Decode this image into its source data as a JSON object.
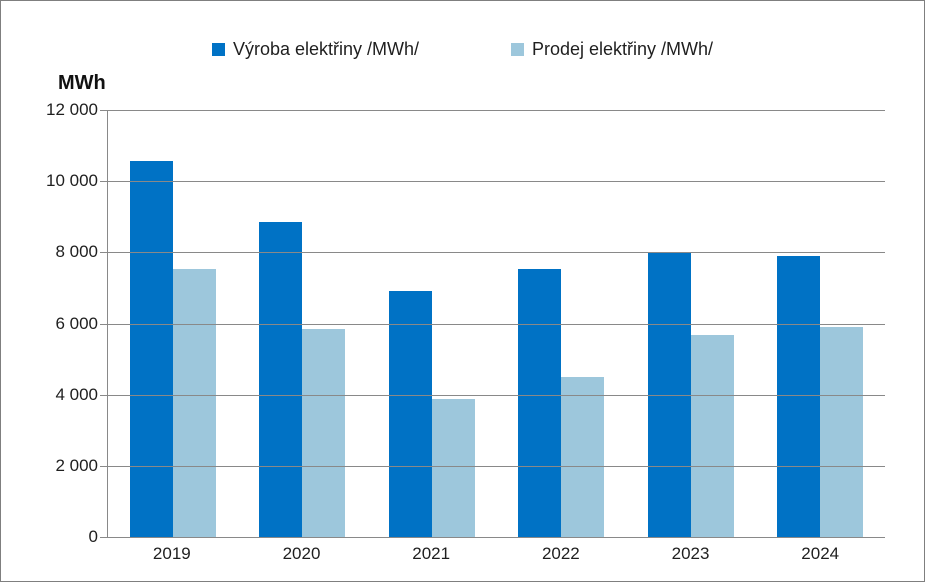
{
  "frame": {
    "background": "#ffffff",
    "border_color": "#7f7f7f"
  },
  "chart_data": {
    "type": "bar",
    "title": "",
    "ylabel": "MWh",
    "xlabel": "",
    "categories": [
      "2019",
      "2020",
      "2021",
      "2022",
      "2023",
      "2024"
    ],
    "series": [
      {
        "name": "Výroba elektřiny /MWh/",
        "color": "#0072c5",
        "values": [
          10560,
          8850,
          6900,
          7530,
          8000,
          7900
        ]
      },
      {
        "name": "Prodej elektřiny /MWh/",
        "color": "#9dc7dc",
        "values": [
          7530,
          5850,
          3880,
          4500,
          5680,
          5890
        ]
      }
    ],
    "ylim": [
      0,
      12000
    ],
    "ytick_step": 2000,
    "ytick_labels": [
      "0",
      "2 000",
      "4 000",
      "6 000",
      "8 000",
      "10 000",
      "12 000"
    ],
    "grid": "horizontal",
    "gridline_color": "#898989",
    "text_color": "#1f1f1f",
    "legend_position": "top-center"
  }
}
